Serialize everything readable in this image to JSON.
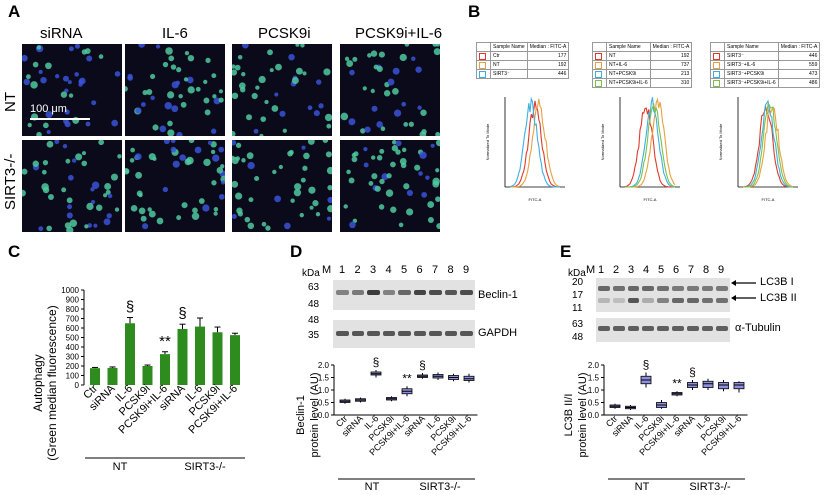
{
  "panelA": {
    "letter": "A",
    "columns": [
      "siRNA",
      "IL-6",
      "PCSK9i",
      "PCSK9i+IL-6"
    ],
    "rows": [
      "NT",
      "SIRT3-/-"
    ],
    "scale_bar": "100 μm"
  },
  "panelB": {
    "letter": "B",
    "tables": [
      {
        "header": [
          "Sample Name",
          "Median : FITC-A"
        ],
        "rows": [
          [
            "Ctr",
            "177"
          ],
          [
            "NT",
            "192"
          ],
          [
            "SIRT3⁻",
            "446"
          ]
        ],
        "colors": [
          "#e0392b",
          "#e8a040",
          "#3bb0e0"
        ]
      },
      {
        "header": [
          "Sample Name",
          "Median : FITC-A"
        ],
        "rows": [
          [
            "NT",
            "192"
          ],
          [
            "NT+IL-6",
            "737"
          ],
          [
            "NT+PCSK9i",
            "213"
          ],
          [
            "NT+PCSK9i+IL-6",
            "310"
          ]
        ],
        "colors": [
          "#e0392b",
          "#e8a040",
          "#3bb0e0",
          "#7cc24a"
        ]
      },
      {
        "header": [
          "Sample Name",
          "Median : FITC-A"
        ],
        "rows": [
          [
            "SIRT3⁻",
            "446"
          ],
          [
            "SIRT3⁻+IL-6",
            "559"
          ],
          [
            "SIRT3⁻+PCSK9i",
            "473"
          ],
          [
            "SIRT3⁻+PCSK9i+IL-6",
            "486"
          ]
        ],
        "colors": [
          "#e0392b",
          "#e8a040",
          "#3bb0e0",
          "#7cc24a"
        ]
      }
    ],
    "histogram_ylabel": "Normalized To Mode",
    "histogram_xlabel": "FITC-A"
  },
  "panelC": {
    "letter": "C",
    "ylabel_line1": "Autophagy",
    "ylabel_line2": "(Green median fluorescence)",
    "group1": "NT",
    "group2": "SIRT3-/-",
    "sig_symbol": "§",
    "sig_stars": "**"
  },
  "panelD": {
    "letter": "D",
    "kda_label": "kDa",
    "lane_marker": "M",
    "lanes": [
      "1",
      "2",
      "3",
      "4",
      "5",
      "6",
      "7",
      "8",
      "9"
    ],
    "mw_top": [
      "63",
      "48"
    ],
    "mw_bottom": [
      "48",
      "35"
    ],
    "protein_top": "Beclin-1",
    "protein_bottom": "GAPDH",
    "ylabel_line1": "Beclin-1",
    "ylabel_line2": "protein level (AU)",
    "group1": "NT",
    "group2": "SIRT3-/-"
  },
  "panelE": {
    "letter": "E",
    "kda_label": "kDa",
    "lane_marker": "M",
    "lanes": [
      "1",
      "2",
      "3",
      "4",
      "5",
      "6",
      "7",
      "8",
      "9"
    ],
    "mw_top": [
      "20",
      "17",
      "11"
    ],
    "mw_bottom": [
      "63",
      "48"
    ],
    "protein_top1": "LC3B I",
    "protein_top2": "LC3B II",
    "protein_bottom": "α-Tubulin",
    "ylabel_line1": "LC3B II/I",
    "ylabel_line2": "protein level (AU)",
    "group1": "NT",
    "group2": "SIRT3-/-"
  },
  "chart_data": [
    {
      "type": "bar",
      "id": "C",
      "categories": [
        "Ctr",
        "siRNA",
        "IL-6",
        "PCSK9i",
        "PCSK9i+IL-6",
        "siRNA",
        "IL-6",
        "PCSK9i",
        "PCSK9i+IL-6"
      ],
      "values": [
        177,
        180,
        650,
        200,
        325,
        590,
        615,
        555,
        525
      ],
      "errors": [
        8,
        10,
        60,
        10,
        25,
        50,
        90,
        55,
        20
      ],
      "yticks": [
        0,
        100,
        200,
        300,
        400,
        500,
        600,
        700,
        800,
        900,
        1000
      ],
      "ylim": [
        0,
        1000
      ],
      "color": "#2e8b1e",
      "annotations": [
        {
          "index": 2,
          "text": "§"
        },
        {
          "index": 4,
          "text": "**"
        },
        {
          "index": 5,
          "text": "§"
        }
      ]
    },
    {
      "type": "box",
      "id": "D",
      "categories": [
        "Ctr",
        "siRNA",
        "IL-6",
        "PCSK9i",
        "PCSK9i+IL-6",
        "siRNA",
        "IL-6",
        "PCSK9i",
        "PCSK9i+IL-6"
      ],
      "boxes": [
        [
          0.45,
          0.5,
          0.55,
          0.6,
          0.65
        ],
        [
          0.5,
          0.55,
          0.6,
          0.65,
          0.7
        ],
        [
          1.5,
          1.6,
          1.65,
          1.72,
          1.8
        ],
        [
          0.55,
          0.6,
          0.65,
          0.7,
          0.75
        ],
        [
          0.75,
          0.85,
          0.95,
          1.05,
          1.15
        ],
        [
          1.45,
          1.5,
          1.55,
          1.6,
          1.68
        ],
        [
          1.4,
          1.48,
          1.55,
          1.62,
          1.7
        ],
        [
          1.35,
          1.42,
          1.5,
          1.58,
          1.65
        ],
        [
          1.3,
          1.38,
          1.45,
          1.55,
          1.65
        ]
      ],
      "yticks": [
        0.0,
        0.5,
        1.0,
        1.5,
        2.0
      ],
      "ylim": [
        0,
        2.0
      ],
      "color": "#8f8fe0",
      "annotations": [
        {
          "index": 2,
          "text": "§"
        },
        {
          "index": 4,
          "text": "**"
        },
        {
          "index": 5,
          "text": "§"
        }
      ]
    },
    {
      "type": "box",
      "id": "E",
      "categories": [
        "Ctr",
        "siRNA",
        "IL-6",
        "PCSK9i",
        "PCSK9i+IL-6",
        "siRNA",
        "IL-6",
        "PCSK9i",
        "PCSK9i+IL-6"
      ],
      "boxes": [
        [
          0.25,
          0.3,
          0.35,
          0.4,
          0.45
        ],
        [
          0.2,
          0.25,
          0.3,
          0.35,
          0.4
        ],
        [
          1.1,
          1.25,
          1.4,
          1.55,
          1.7
        ],
        [
          0.25,
          0.3,
          0.4,
          0.5,
          0.6
        ],
        [
          0.75,
          0.8,
          0.85,
          0.9,
          0.95
        ],
        [
          1.0,
          1.1,
          1.2,
          1.3,
          1.4
        ],
        [
          1.0,
          1.1,
          1.25,
          1.35,
          1.45
        ],
        [
          0.95,
          1.05,
          1.2,
          1.3,
          1.4
        ],
        [
          0.9,
          1.05,
          1.2,
          1.3,
          1.35
        ]
      ],
      "yticks": [
        0.0,
        0.5,
        1.0,
        1.5,
        2.0
      ],
      "ylim": [
        0,
        2.0
      ],
      "color": "#8f8fe0",
      "annotations": [
        {
          "index": 2,
          "text": "§"
        },
        {
          "index": 4,
          "text": "**"
        },
        {
          "index": 5,
          "text": "§"
        }
      ]
    }
  ]
}
